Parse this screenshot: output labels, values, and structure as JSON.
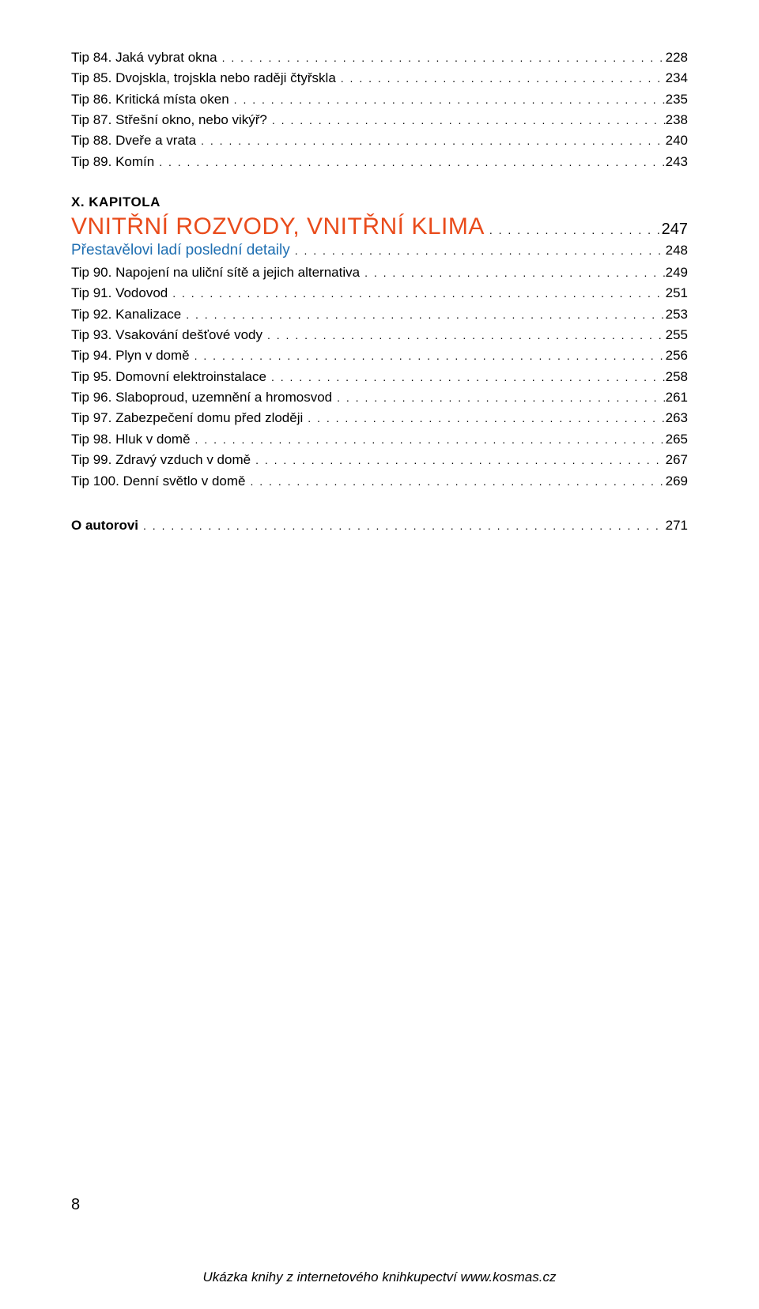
{
  "colors": {
    "text": "#000000",
    "background": "#ffffff",
    "chapter_title": "#e94b1b",
    "subtitle": "#1f6fb2"
  },
  "dots": ". . . . . . . . . . . . . . . . . . . . . . . . . . . . . . . . . . . . . . . . . . . . . . . . . . . . . . . . . . . . . . . . . . . . . . . . . . . . . . . . . . . . . . . . . . . . . . . . . . . . . . . . . . . . . . . . . . . . . . . . . . . . . . . . . . . . . . . . . . . . . . . . . . . . . . . . . . . . . . . . . . . . . . . . . . . . . . . . . . . . . . . . . . . . . . . . . . . . . . . . . . . . . . . .",
  "top_items": [
    {
      "label": "Tip 84. Jaká vybrat okna",
      "page": "228"
    },
    {
      "label": "Tip 85. Dvojskla, trojskla nebo raději čtyřskla",
      "page": "234"
    },
    {
      "label": "Tip 86. Kritická místa oken",
      "page": "235"
    },
    {
      "label": "Tip 87. Střešní okno, nebo vikýř?",
      "page": "238"
    },
    {
      "label": "Tip 88. Dveře a vrata",
      "page": "240"
    },
    {
      "label": "Tip 89. Komín",
      "page": "243"
    }
  ],
  "chapter": {
    "kicker": "X. KAPITOLA",
    "title": "VNITŘNÍ ROZVODY, VNITŘNÍ KLIMA",
    "page": "247",
    "subtitle": {
      "label": "Přestavělovi ladí poslední detaily",
      "page": "248"
    },
    "items": [
      {
        "label": "Tip 90. Napojení na uliční sítě a jejich alternativa",
        "page": "249"
      },
      {
        "label": "Tip 91. Vodovod",
        "page": "251"
      },
      {
        "label": "Tip 92. Kanalizace",
        "page": "253"
      },
      {
        "label": "Tip 93. Vsakování dešťové vody",
        "page": "255"
      },
      {
        "label": "Tip 94. Plyn v domě",
        "page": "256"
      },
      {
        "label": "Tip 95. Domovní elektroinstalace",
        "page": "258"
      },
      {
        "label": "Tip 96. Slaboproud, uzemnění a hromosvod",
        "page": "261"
      },
      {
        "label": "Tip 97. Zabezpečení domu před zloději",
        "page": "263"
      },
      {
        "label": "Tip 98. Hluk v domě",
        "page": "265"
      },
      {
        "label": "Tip 99. Zdravý vzduch v domě",
        "page": "267"
      },
      {
        "label": "Tip 100. Denní světlo v domě",
        "page": "269"
      }
    ]
  },
  "author": {
    "label": "O autorovi",
    "page": "271"
  },
  "page_number": "8",
  "footer_note": "Ukázka knihy z internetového knihkupectví www.kosmas.cz"
}
